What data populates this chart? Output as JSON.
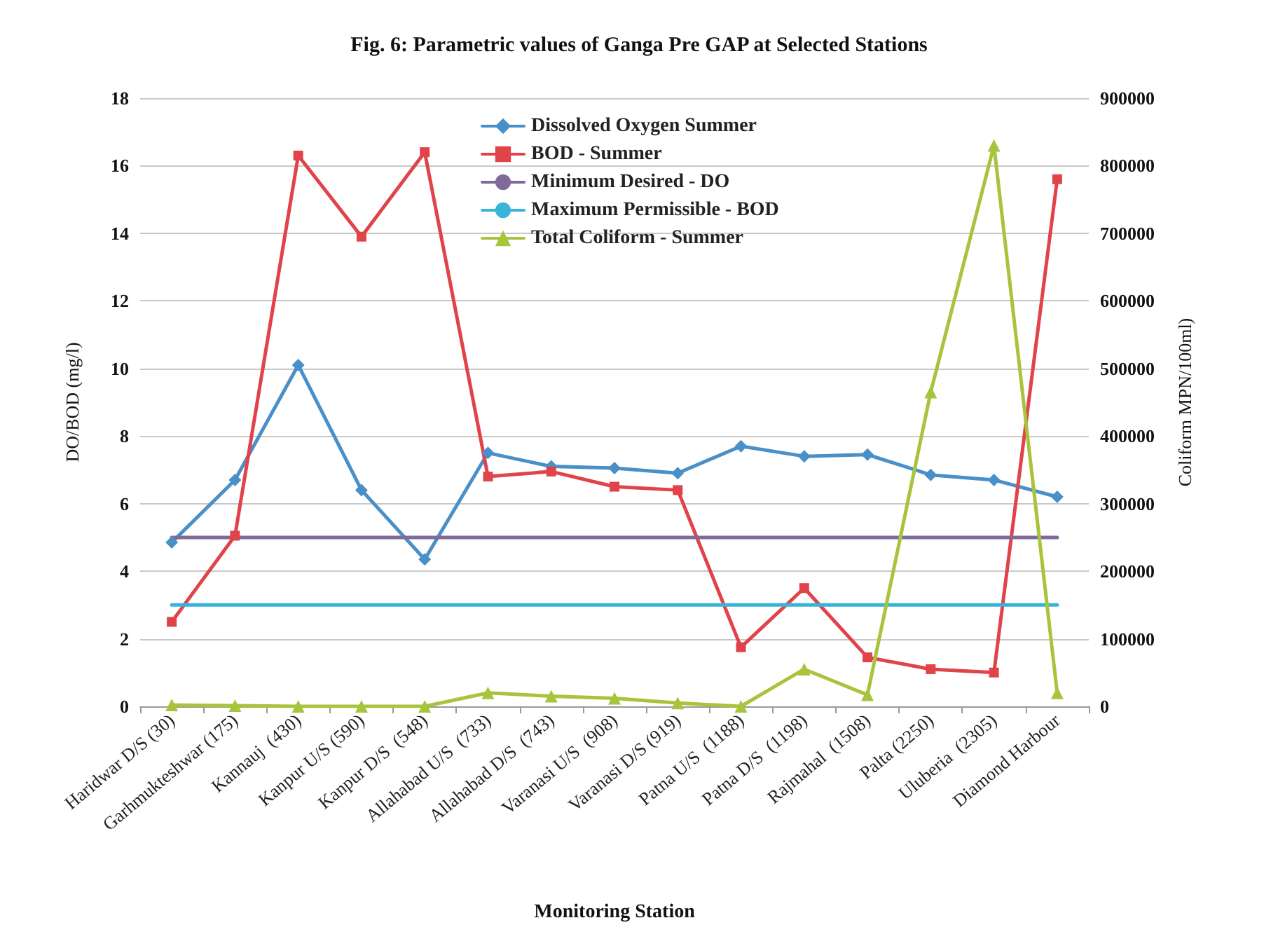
{
  "chart_data": {
    "type": "line",
    "title": "Fig. 6: Parametric values of Ganga Pre GAP at Selected Stations",
    "xlabel": "Monitoring Station",
    "ylabel": "DO/BOD (mg/l)",
    "y2label": "Coliform MPN/100ml)",
    "categories": [
      "Haridwar D/S (30)",
      "Garhmukteshwar (175)",
      "Kannauj  (430)",
      "Kanpur U/S (590)",
      "Kanpur D/S  (548)",
      "Allahabad U/S  (733)",
      "Allahabad D/S  (743)",
      "Varanasi U/S  (908)",
      "Varanasi D/S (919)",
      "Patna U/S  (1188)",
      "Patna D/S  (1198)",
      "Rajmahal  (1508)",
      "Palta (2250)",
      "Uluberia  (2305)",
      "Diamond Harbour"
    ],
    "series": [
      {
        "name": "Dissolved Oxygen Summer",
        "color": "#4a90c8",
        "marker": "diamond",
        "values": [
          4.85,
          6.7,
          10.1,
          6.4,
          4.35,
          7.5,
          7.1,
          7.05,
          6.9,
          7.7,
          7.4,
          7.45,
          6.85,
          6.7,
          6.2
        ]
      },
      {
        "name": "BOD - Summer",
        "color": "#e0434a",
        "marker": "square",
        "values": [
          2.5,
          5.05,
          16.3,
          13.9,
          16.4,
          6.8,
          6.95,
          6.5,
          6.4,
          1.75,
          3.5,
          1.45,
          1.1,
          1.0,
          15.6
        ]
      },
      {
        "name": "Minimum Desired - DO",
        "color": "#7f6a9a",
        "marker": "none",
        "values": [
          5,
          5,
          5,
          5,
          5,
          5,
          5,
          5,
          5,
          5,
          5,
          5,
          5,
          5,
          5
        ]
      },
      {
        "name": "Maximum Permissible - BOD",
        "color": "#37b4d8",
        "marker": "none",
        "values": [
          3,
          3,
          3,
          3,
          3,
          3,
          3,
          3,
          3,
          3,
          3,
          3,
          3,
          3,
          3
        ]
      },
      {
        "name": "Total Coliform - Summer",
        "color": "#a8c43c",
        "marker": "triangle",
        "axis": "y2",
        "values": [
          2000,
          1000,
          0,
          0,
          0,
          20000,
          15000,
          12000,
          5000,
          0,
          55000,
          17000,
          465000,
          830000,
          20000
        ]
      }
    ],
    "ylim": [
      0,
      18
    ],
    "yticks": [
      0,
      2,
      4,
      6,
      8,
      10,
      12,
      14,
      16,
      18
    ],
    "y2lim": [
      0,
      900000
    ],
    "y2ticks": [
      0,
      100000,
      200000,
      300000,
      400000,
      500000,
      600000,
      700000,
      800000,
      900000
    ],
    "grid": "y",
    "legend": "top"
  }
}
